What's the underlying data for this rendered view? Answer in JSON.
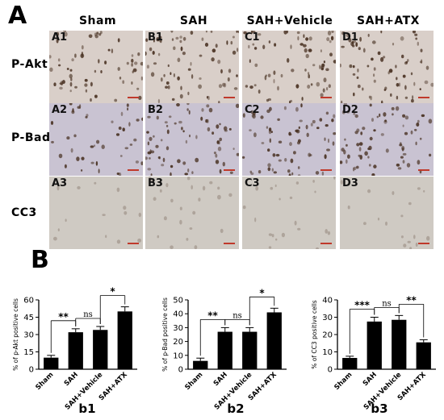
{
  "panel_a_letter": "A",
  "panel_b_letter": "B",
  "columns": [
    "Sham",
    "SAH",
    "SAH+Vehicle",
    "SAH+ATX"
  ],
  "rows": [
    "P-Akt",
    "P-Bad",
    "CC3"
  ],
  "tile_labels": [
    [
      "A1",
      "B1",
      "C1",
      "D1"
    ],
    [
      "A2",
      "B2",
      "C2",
      "D2"
    ],
    [
      "A3",
      "B3",
      "C3",
      "D3"
    ]
  ],
  "tile_colors": {
    "p_akt_bg": "#d9cfc9",
    "p_bad_bg": "#c9c3d2",
    "cc3_bg": "#cfcac3",
    "nucleus": "#4a3324",
    "scalebar": "#c0392b"
  },
  "chart_data": [
    {
      "type": "bar",
      "panel": "b1",
      "categories": [
        "Sham",
        "SAH",
        "SAH+Vehicle",
        "SAH+ATX"
      ],
      "values": [
        10,
        32,
        34,
        50
      ],
      "errors": [
        2,
        3,
        3,
        4
      ],
      "ylabel": "% of p-Akt positive cells",
      "ylim": [
        0,
        60
      ],
      "yticks": [
        "0",
        "15",
        "30",
        "45",
        "60"
      ],
      "comparisons": [
        {
          "from": 0,
          "to": 1,
          "label": "**"
        },
        {
          "from": 1,
          "to": 2,
          "label": "ns"
        },
        {
          "from": 2,
          "to": 3,
          "label": "*"
        }
      ]
    },
    {
      "type": "bar",
      "panel": "b2",
      "categories": [
        "Sham",
        "SAH",
        "SAH+Vehicle",
        "SAH+ATX"
      ],
      "values": [
        6,
        27,
        27,
        41
      ],
      "errors": [
        2,
        3,
        3,
        3
      ],
      "ylabel": "% of p-Bad positive cells",
      "ylim": [
        0,
        50
      ],
      "yticks": [
        "0",
        "10",
        "20",
        "30",
        "40",
        "50"
      ],
      "comparisons": [
        {
          "from": 0,
          "to": 1,
          "label": "**"
        },
        {
          "from": 1,
          "to": 2,
          "label": "ns"
        },
        {
          "from": 2,
          "to": 3,
          "label": "*"
        }
      ]
    },
    {
      "type": "bar",
      "panel": "b3",
      "categories": [
        "Sham",
        "SAH",
        "SAH+Vehicle",
        "SAH+ATX"
      ],
      "values": [
        6.5,
        27.5,
        28.5,
        15.5
      ],
      "errors": [
        1,
        2.5,
        2.5,
        1.5
      ],
      "ylabel": "% of CC3 positive cells",
      "ylim": [
        0,
        40
      ],
      "yticks": [
        "0",
        "10",
        "20",
        "30",
        "40"
      ],
      "comparisons": [
        {
          "from": 0,
          "to": 1,
          "label": "***"
        },
        {
          "from": 1,
          "to": 2,
          "label": "ns"
        },
        {
          "from": 2,
          "to": 3,
          "label": "**"
        }
      ]
    }
  ],
  "sub_labels": [
    "b1",
    "b2",
    "b3"
  ]
}
